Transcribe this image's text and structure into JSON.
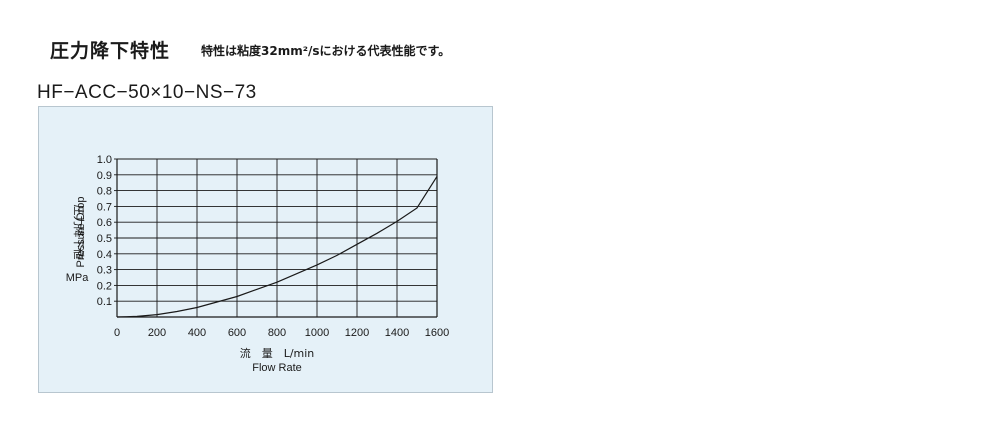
{
  "header": {
    "title": "圧力降下特性",
    "note": "特性は粘度32mm²/sにおける代表性能です。",
    "model": "HF−ACC−50×10−NS−73"
  },
  "chart_data": {
    "type": "line",
    "x_label_jp": "流　量　L/min",
    "x_label_en": "Flow Rate",
    "y_label_jp": "圧力降下値",
    "y_label_en": "Pressure Drop",
    "y_unit": "MPa",
    "xlim": [
      0,
      1600
    ],
    "ylim": [
      0,
      1.0
    ],
    "x_ticks": [
      "0",
      "200",
      "400",
      "600",
      "800",
      "1000",
      "1200",
      "1400",
      "1600"
    ],
    "y_ticks": [
      "0.1",
      "0.2",
      "0.3",
      "0.4",
      "0.5",
      "0.6",
      "0.7",
      "0.8",
      "0.9",
      "1.0"
    ],
    "grid": true,
    "series": [
      {
        "x": [
          0,
          100,
          200,
          300,
          400,
          500,
          600,
          700,
          800,
          900,
          1000,
          1100,
          1200,
          1300,
          1400,
          1500,
          1600
        ],
        "y": [
          0.0,
          0.004,
          0.015,
          0.035,
          0.06,
          0.095,
          0.13,
          0.175,
          0.22,
          0.275,
          0.33,
          0.39,
          0.46,
          0.53,
          0.605,
          0.69,
          0.89
        ]
      }
    ],
    "colors": {
      "background": "#e5f1f8",
      "line": "#1a1a1a",
      "grid": "#1a1a1a"
    }
  }
}
